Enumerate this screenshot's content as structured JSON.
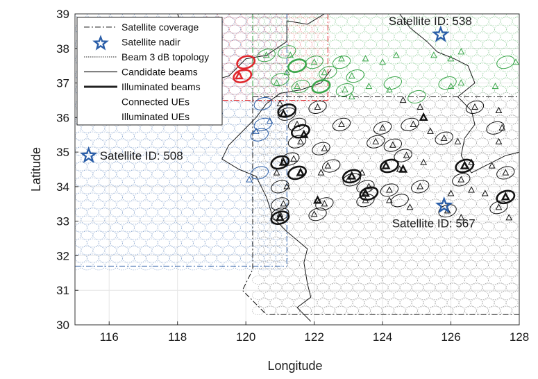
{
  "chart_data": {
    "type": "scatter",
    "xlabel": "Longitude",
    "ylabel": "Latitude",
    "xlim": [
      115,
      128
    ],
    "ylim": [
      30,
      39
    ],
    "xticks": [
      116,
      118,
      120,
      122,
      124,
      126,
      128
    ],
    "yticks": [
      30,
      31,
      32,
      33,
      34,
      35,
      36,
      37,
      38,
      39
    ],
    "grid": true,
    "legend_position": "top-left",
    "legend": [
      {
        "label": "Satellite coverage",
        "style": "dashdot-line"
      },
      {
        "label": "Satellite nadir",
        "style": "star"
      },
      {
        "label": "Beam 3 dB topology",
        "style": "dotted-line"
      },
      {
        "label": "Candidate beams",
        "style": "solid-line"
      },
      {
        "label": "Illuminated beams",
        "style": "thick-line"
      },
      {
        "label": "Connected UEs",
        "style": "open-triangle"
      },
      {
        "label": "Illuminated UEs",
        "style": "bold-triangle"
      }
    ],
    "colors": {
      "blue": "#2b5ea8",
      "green": "#3aa64a",
      "black": "#111111",
      "red": "#e0262b",
      "coast": "#1a1a1a"
    },
    "satellites": [
      {
        "id_label": "Satellite ID: 508",
        "nadir": [
          115.4,
          34.9
        ],
        "color": "#2b5ea8",
        "coverage": {
          "lon": [
            110,
            121.2
          ],
          "lat": [
            31.7,
            41
          ]
        }
      },
      {
        "id_label": "Satellite ID: 538",
        "nadir": [
          125.7,
          38.4
        ],
        "color": "#3aa64a",
        "coverage": {
          "lon": [
            120.2,
            130
          ],
          "lat": [
            36.6,
            41
          ]
        }
      },
      {
        "id_label": "Satellite ID: 567",
        "nadir": [
          125.8,
          33.45
        ],
        "color": "#111111",
        "coverage": {
          "lon": [
            120.2,
            128
          ],
          "lat": [
            30.3,
            36.6
          ]
        }
      }
    ],
    "red_coverage": {
      "lon": [
        119.0,
        122.4
      ],
      "lat": [
        36.5,
        39.2
      ]
    },
    "coastline": [
      [
        122.3,
        39.0
      ],
      [
        121.8,
        38.7
      ],
      [
        121.2,
        38.8
      ],
      [
        121.2,
        38.2
      ],
      [
        120.6,
        37.8
      ],
      [
        120.0,
        37.7
      ],
      [
        119.5,
        37.2
      ],
      [
        119.1,
        37.1
      ],
      [
        118.9,
        37.5
      ],
      [
        118.7,
        37.9
      ],
      [
        118.6,
        38.3
      ],
      [
        118.2,
        38.6
      ],
      [
        118.0,
        39.0
      ]
    ],
    "coastline2": [
      [
        122.5,
        37.4
      ],
      [
        122.2,
        37.0
      ],
      [
        121.6,
        36.8
      ],
      [
        121.0,
        36.7
      ],
      [
        120.6,
        36.4
      ],
      [
        120.3,
        36.0
      ],
      [
        119.9,
        35.6
      ],
      [
        119.5,
        35.2
      ],
      [
        119.3,
        34.8
      ],
      [
        119.8,
        34.5
      ],
      [
        120.3,
        34.3
      ],
      [
        120.6,
        33.7
      ],
      [
        120.8,
        33.1
      ],
      [
        121.2,
        32.7
      ],
      [
        121.8,
        32.2
      ],
      [
        121.7,
        31.8
      ],
      [
        121.8,
        31.2
      ],
      [
        121.9,
        30.8
      ],
      [
        121.5,
        30.5
      ],
      [
        121.9,
        30.1
      ]
    ],
    "korea_coast": [
      [
        124.5,
        39.0
      ],
      [
        124.8,
        38.6
      ],
      [
        125.3,
        38.2
      ],
      [
        125.6,
        37.9
      ],
      [
        126.1,
        37.7
      ],
      [
        126.5,
        37.5
      ],
      [
        126.7,
        37.0
      ],
      [
        126.2,
        36.6
      ],
      [
        126.6,
        36.2
      ],
      [
        126.7,
        35.8
      ],
      [
        126.4,
        35.4
      ],
      [
        126.3,
        34.9
      ],
      [
        126.6,
        34.4
      ],
      [
        127.2,
        34.7
      ],
      [
        127.6,
        34.9
      ],
      [
        128.0,
        35.0
      ]
    ],
    "connected_ues": [
      [
        120.6,
        37.8
      ],
      [
        121.3,
        37.8
      ],
      [
        122.0,
        37.6
      ],
      [
        122.8,
        37.7
      ],
      [
        123.5,
        37.7
      ],
      [
        124.0,
        37.6
      ],
      [
        124.4,
        37.8
      ],
      [
        125.5,
        37.8
      ],
      [
        126.0,
        37.7
      ],
      [
        126.3,
        37.9
      ],
      [
        127.9,
        37.6
      ],
      [
        121.2,
        37.3
      ],
      [
        122.3,
        37.3
      ],
      [
        123.1,
        37.2
      ],
      [
        126.3,
        37.0
      ],
      [
        120.9,
        37.0
      ],
      [
        121.5,
        36.9
      ],
      [
        122.9,
        36.8
      ],
      [
        123.6,
        36.9
      ],
      [
        124.2,
        36.8
      ],
      [
        126.0,
        36.9
      ],
      [
        127.3,
        36.9
      ],
      [
        121.0,
        36.4
      ],
      [
        122.1,
        36.3
      ],
      [
        123.1,
        36.6
      ],
      [
        124.6,
        36.5
      ],
      [
        125.1,
        36.3
      ],
      [
        126.7,
        36.3
      ],
      [
        127.4,
        36.2
      ],
      [
        120.7,
        35.9
      ],
      [
        121.5,
        35.8
      ],
      [
        122.8,
        35.8
      ],
      [
        124.0,
        35.7
      ],
      [
        124.9,
        35.8
      ],
      [
        125.4,
        35.6
      ],
      [
        127.5,
        35.7
      ],
      [
        120.3,
        35.6
      ],
      [
        121.6,
        35.3
      ],
      [
        122.3,
        35.1
      ],
      [
        123.8,
        35.3
      ],
      [
        124.3,
        35.2
      ],
      [
        125.8,
        35.4
      ],
      [
        126.2,
        35.3
      ],
      [
        127.4,
        35.3
      ],
      [
        121.4,
        34.8
      ],
      [
        122.4,
        34.6
      ],
      [
        124.7,
        34.9
      ],
      [
        125.2,
        34.7
      ],
      [
        126.6,
        34.7
      ],
      [
        127.2,
        34.6
      ],
      [
        120.9,
        34.4
      ],
      [
        122.2,
        34.4
      ],
      [
        123.4,
        34.4
      ],
      [
        124.5,
        34.5
      ],
      [
        126.3,
        34.2
      ],
      [
        127.6,
        34.4
      ],
      [
        120.1,
        34.2
      ],
      [
        121.2,
        34.0
      ],
      [
        123.0,
        34.2
      ],
      [
        123.6,
        34.0
      ],
      [
        124.2,
        33.9
      ],
      [
        125.1,
        34.0
      ],
      [
        126.0,
        33.8
      ],
      [
        126.6,
        33.9
      ],
      [
        127.0,
        33.8
      ],
      [
        121.1,
        33.5
      ],
      [
        122.3,
        33.5
      ],
      [
        123.5,
        33.6
      ],
      [
        124.2,
        33.6
      ],
      [
        124.8,
        33.4
      ],
      [
        125.9,
        33.3
      ],
      [
        127.4,
        33.4
      ],
      [
        121.0,
        33.2
      ],
      [
        122.0,
        33.2
      ],
      [
        126.3,
        33.1
      ],
      [
        127.7,
        33.1
      ]
    ],
    "illuminated_ues": [
      [
        119.8,
        37.2
      ],
      [
        121.1,
        36.1
      ],
      [
        121.7,
        35.5
      ],
      [
        121.1,
        34.7
      ],
      [
        121.6,
        34.4
      ],
      [
        123.1,
        34.3
      ],
      [
        124.1,
        34.6
      ],
      [
        124.6,
        34.5
      ],
      [
        126.4,
        34.6
      ],
      [
        123.5,
        33.8
      ],
      [
        127.6,
        33.7
      ],
      [
        121.0,
        33.1
      ],
      [
        122.1,
        33.6
      ],
      [
        125.2,
        36.0
      ]
    ],
    "candidate_beams": [
      [
        120.6,
        37.8
      ],
      [
        121.2,
        37.9
      ],
      [
        122.0,
        37.6
      ],
      [
        122.8,
        37.6
      ],
      [
        121.0,
        37.1
      ],
      [
        122.4,
        37.3
      ],
      [
        123.2,
        37.2
      ],
      [
        121.6,
        36.9
      ],
      [
        122.9,
        36.8
      ],
      [
        120.5,
        36.4
      ],
      [
        121.2,
        36.1
      ],
      [
        122.1,
        36.3
      ],
      [
        124.3,
        37.0
      ],
      [
        125.0,
        36.6
      ],
      [
        125.9,
        37.0
      ],
      [
        120.5,
        35.8
      ],
      [
        121.5,
        35.8
      ],
      [
        122.8,
        35.8
      ],
      [
        124.0,
        35.7
      ],
      [
        124.8,
        35.8
      ],
      [
        120.4,
        35.5
      ],
      [
        121.5,
        35.3
      ],
      [
        122.2,
        35.1
      ],
      [
        123.8,
        35.3
      ],
      [
        124.3,
        35.2
      ],
      [
        125.8,
        35.4
      ],
      [
        121.3,
        34.8
      ],
      [
        122.5,
        34.6
      ],
      [
        124.6,
        34.9
      ],
      [
        120.4,
        34.4
      ],
      [
        121.0,
        34.0
      ],
      [
        123.1,
        34.2
      ],
      [
        123.5,
        34.0
      ],
      [
        124.2,
        33.9
      ],
      [
        125.1,
        34.0
      ],
      [
        121.0,
        33.5
      ],
      [
        122.3,
        33.5
      ],
      [
        123.5,
        33.6
      ],
      [
        124.5,
        33.6
      ],
      [
        125.9,
        33.3
      ],
      [
        127.4,
        33.4
      ],
      [
        121.0,
        33.2
      ],
      [
        122.1,
        33.2
      ],
      [
        127.6,
        37.6
      ],
      [
        127.3,
        35.7
      ],
      [
        126.7,
        36.3
      ],
      [
        126.3,
        34.2
      ],
      [
        127.6,
        34.4
      ]
    ],
    "illuminated_beams": [
      [
        119.9,
        37.2
      ],
      [
        120.0,
        37.6
      ],
      [
        121.2,
        36.2
      ],
      [
        121.6,
        35.6
      ],
      [
        121.0,
        34.7
      ],
      [
        121.5,
        34.4
      ],
      [
        123.1,
        34.3
      ],
      [
        124.2,
        34.6
      ],
      [
        126.4,
        34.6
      ],
      [
        123.6,
        33.8
      ],
      [
        127.6,
        33.7
      ],
      [
        121.0,
        33.1
      ],
      [
        121.5,
        37.5
      ],
      [
        122.2,
        36.9
      ]
    ]
  }
}
